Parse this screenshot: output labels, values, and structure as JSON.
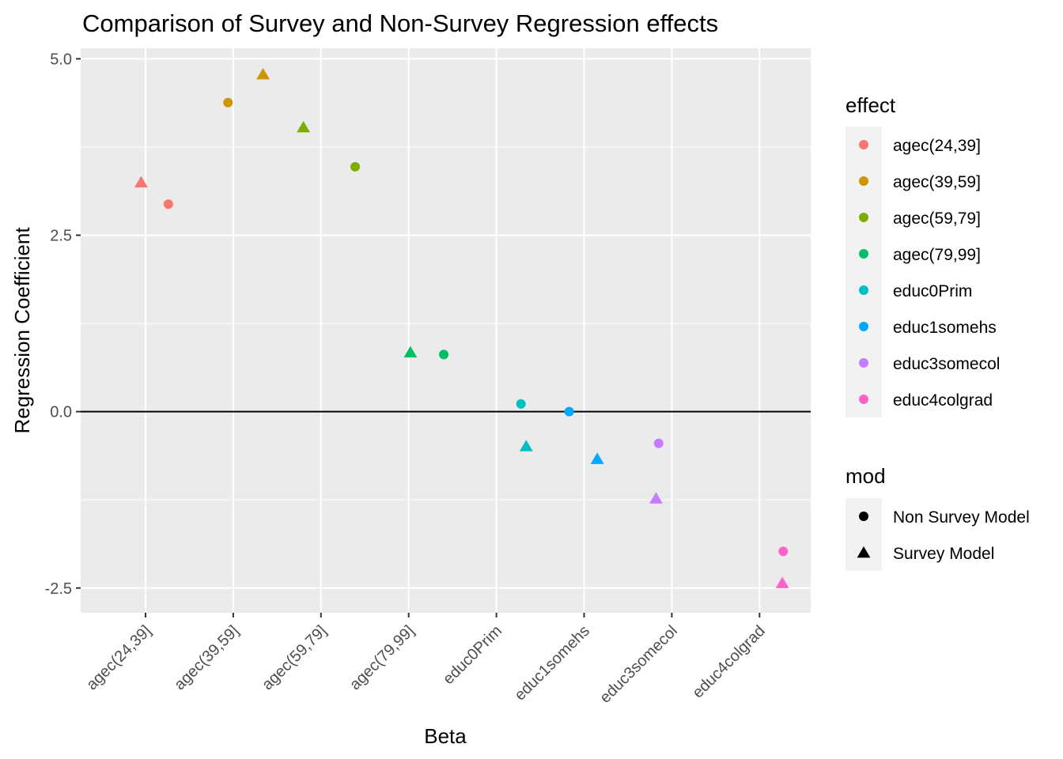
{
  "chart_data": {
    "type": "scatter",
    "title": "Comparison of Survey and Non-Survey Regression effects",
    "xlabel": "Beta",
    "ylabel": "Regression Coefficient",
    "categories": [
      "agec(24,39]",
      "agec(39,59]",
      "agec(59,79]",
      "agec(79,99]",
      "educ0Prim",
      "educ1somehs",
      "educ3somecol",
      "educ4colgrad"
    ],
    "ylim": [
      -2.85,
      5.15
    ],
    "yticks": [
      {
        "value": -2.5,
        "label": "-2.5"
      },
      {
        "value": 0,
        "label": "0.0"
      },
      {
        "value": 2.5,
        "label": "2.5"
      },
      {
        "value": 5,
        "label": "5.0"
      }
    ],
    "hline": 0,
    "grid": true,
    "legend_position": "right",
    "legends": {
      "effect": {
        "title": "effect",
        "entries": [
          {
            "label": "agec(24,39]",
            "color": "#F8766D"
          },
          {
            "label": "agec(39,59]",
            "color": "#CD9600"
          },
          {
            "label": "agec(59,79]",
            "color": "#7CAE00"
          },
          {
            "label": "agec(79,99]",
            "color": "#00BE67"
          },
          {
            "label": "educ0Prim",
            "color": "#00BFC4"
          },
          {
            "label": "educ1somehs",
            "color": "#00A9FF"
          },
          {
            "label": "educ3somecol",
            "color": "#C77CFF"
          },
          {
            "label": "educ4colgrad",
            "color": "#FF61CC"
          }
        ]
      },
      "mod": {
        "title": "mod",
        "entries": [
          {
            "label": "Non Survey Model",
            "shape": "circle"
          },
          {
            "label": "Survey Model",
            "shape": "triangle"
          }
        ]
      }
    },
    "series": [
      {
        "name": "Non Survey Model",
        "shape": "circle",
        "points": [
          {
            "category": "agec(24,39]",
            "x_offset": 0.26,
            "y": 2.94
          },
          {
            "category": "agec(39,59]",
            "x_offset": -0.06,
            "y": 4.38
          },
          {
            "category": "agec(59,79]",
            "x_offset": 0.39,
            "y": 3.47
          },
          {
            "category": "agec(79,99]",
            "x_offset": 0.4,
            "y": 0.81
          },
          {
            "category": "educ0Prim",
            "x_offset": 0.28,
            "y": 0.11
          },
          {
            "category": "educ1somehs",
            "x_offset": -0.17,
            "y": 0.0
          },
          {
            "category": "educ3somecol",
            "x_offset": -0.15,
            "y": -0.45
          },
          {
            "category": "educ4colgrad",
            "x_offset": 0.27,
            "y": -1.98
          }
        ]
      },
      {
        "name": "Survey Model",
        "shape": "triangle",
        "points": [
          {
            "category": "agec(24,39]",
            "x_offset": -0.05,
            "y": 3.25
          },
          {
            "category": "agec(39,59]",
            "x_offset": 0.34,
            "y": 4.78
          },
          {
            "category": "agec(59,79]",
            "x_offset": -0.2,
            "y": 4.03
          },
          {
            "category": "agec(79,99]",
            "x_offset": 0.02,
            "y": 0.84
          },
          {
            "category": "educ0Prim",
            "x_offset": 0.34,
            "y": -0.49
          },
          {
            "category": "educ1somehs",
            "x_offset": 0.15,
            "y": -0.67
          },
          {
            "category": "educ3somecol",
            "x_offset": -0.18,
            "y": -1.23
          },
          {
            "category": "educ4colgrad",
            "x_offset": 0.26,
            "y": -2.43
          }
        ]
      }
    ]
  }
}
